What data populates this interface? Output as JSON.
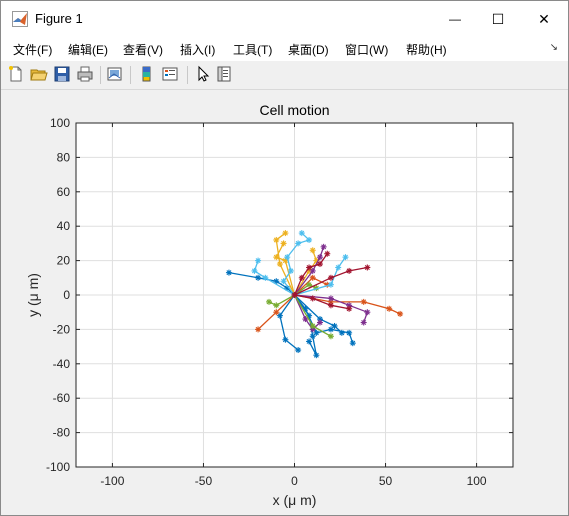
{
  "window": {
    "title": "Figure 1",
    "minimize_glyph": "—",
    "maximize_glyph": "☐",
    "close_glyph": "✕"
  },
  "menu": {
    "items": [
      "文件(F)",
      "编辑(E)",
      "查看(V)",
      "插入(I)",
      "工具(T)",
      "桌面(D)",
      "窗口(W)",
      "帮助(H)"
    ],
    "overflow_glyph": "↘"
  },
  "toolbar": {
    "buttons": [
      "new-figure-icon",
      "open-file-icon",
      "save-icon",
      "print-icon",
      "link-plot-icon",
      "colorbar-icon",
      "legend-icon",
      "pointer-icon",
      "property-inspector-icon"
    ]
  },
  "chart_data": {
    "type": "line",
    "title": "Cell motion",
    "xlabel": "x (μ m)",
    "ylabel": "y (μ m)",
    "xlim": [
      -120,
      120
    ],
    "ylim": [
      -100,
      100
    ],
    "xticks": [
      -100,
      -50,
      0,
      50,
      100
    ],
    "yticks": [
      100,
      80,
      60,
      40,
      20,
      0,
      -20,
      -40,
      -60,
      -80,
      -100
    ],
    "grid": true,
    "marker": "asterisk",
    "series": [
      {
        "color": "#0072BD",
        "x": [
          0,
          -4,
          -10,
          -20,
          -36
        ],
        "y": [
          0,
          4,
          8,
          10,
          13
        ]
      },
      {
        "color": "#0072BD",
        "x": [
          0,
          6,
          12,
          20,
          30,
          32
        ],
        "y": [
          0,
          -8,
          -22,
          -20,
          -22,
          -28
        ]
      },
      {
        "color": "#0072BD",
        "x": [
          0,
          -8,
          -5,
          2
        ],
        "y": [
          0,
          -12,
          -26,
          -32
        ]
      },
      {
        "color": "#0072BD",
        "x": [
          0,
          8,
          10,
          12,
          8
        ],
        "y": [
          0,
          -12,
          -24,
          -35,
          -27
        ]
      },
      {
        "color": "#0072BD",
        "x": [
          0,
          14,
          22,
          26
        ],
        "y": [
          0,
          -14,
          -18,
          -22
        ]
      },
      {
        "color": "#D95319",
        "x": [
          0,
          20,
          38,
          52,
          58
        ],
        "y": [
          0,
          -4,
          -4,
          -8,
          -11
        ]
      },
      {
        "color": "#D95319",
        "x": [
          0,
          -10,
          -20
        ],
        "y": [
          0,
          -10,
          -20
        ]
      },
      {
        "color": "#D95319",
        "x": [
          0,
          10,
          18
        ],
        "y": [
          0,
          10,
          6
        ]
      },
      {
        "color": "#EDB120",
        "x": [
          0,
          -5,
          -10,
          -6
        ],
        "y": [
          0,
          20,
          22,
          30
        ]
      },
      {
        "color": "#EDB120",
        "x": [
          0,
          -8,
          -10,
          -5
        ],
        "y": [
          0,
          18,
          32,
          36
        ]
      },
      {
        "color": "#EDB120",
        "x": [
          0,
          8,
          12,
          10
        ],
        "y": [
          0,
          14,
          20,
          26
        ]
      },
      {
        "color": "#7E2F8E",
        "x": [
          0,
          10,
          14,
          16
        ],
        "y": [
          0,
          14,
          22,
          28
        ]
      },
      {
        "color": "#7E2F8E",
        "x": [
          0,
          20,
          30,
          40,
          38
        ],
        "y": [
          0,
          -2,
          -6,
          -10,
          -16
        ]
      },
      {
        "color": "#7E2F8E",
        "x": [
          0,
          6,
          10,
          14
        ],
        "y": [
          0,
          -14,
          -20,
          -16
        ]
      },
      {
        "color": "#77AC30",
        "x": [
          0,
          10,
          20
        ],
        "y": [
          0,
          -18,
          -24
        ]
      },
      {
        "color": "#77AC30",
        "x": [
          0,
          -10,
          -14
        ],
        "y": [
          0,
          -6,
          -4
        ]
      },
      {
        "color": "#77AC30",
        "x": [
          0,
          8,
          12
        ],
        "y": [
          0,
          6,
          4
        ]
      },
      {
        "color": "#4DBEEE",
        "x": [
          0,
          -6,
          -2,
          -4,
          2,
          8,
          4
        ],
        "y": [
          0,
          8,
          14,
          22,
          30,
          32,
          36
        ]
      },
      {
        "color": "#4DBEEE",
        "x": [
          0,
          -16,
          -22,
          -20
        ],
        "y": [
          0,
          10,
          14,
          20
        ]
      },
      {
        "color": "#4DBEEE",
        "x": [
          0,
          20,
          24,
          28
        ],
        "y": [
          0,
          6,
          16,
          22
        ]
      },
      {
        "color": "#A2142F",
        "x": [
          0,
          20,
          30,
          40
        ],
        "y": [
          0,
          10,
          14,
          16
        ]
      },
      {
        "color": "#A2142F",
        "x": [
          0,
          10,
          20,
          30
        ],
        "y": [
          0,
          -2,
          -6,
          -8
        ]
      },
      {
        "color": "#A2142F",
        "x": [
          0,
          4,
          8,
          14,
          18
        ],
        "y": [
          0,
          10,
          16,
          18,
          24
        ]
      }
    ]
  }
}
